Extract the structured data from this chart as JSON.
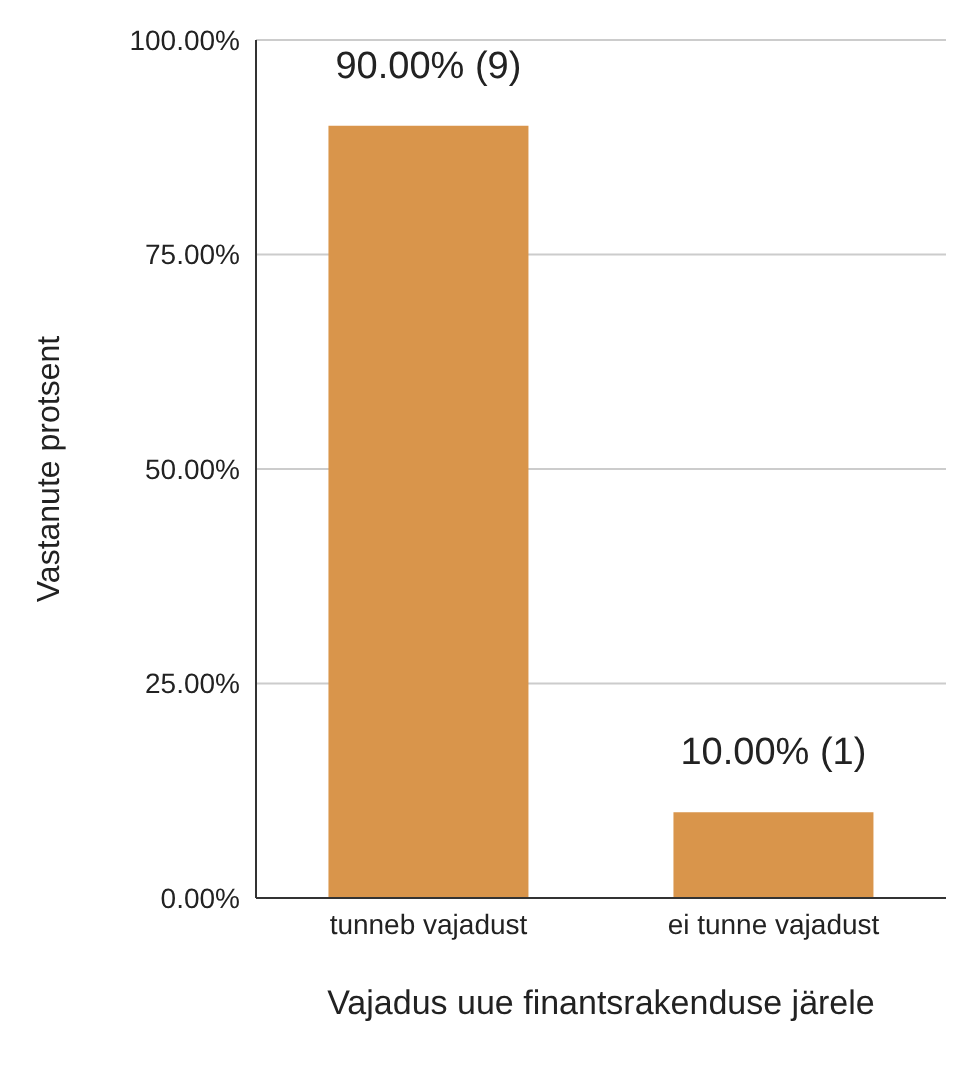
{
  "chart_data": {
    "type": "bar",
    "xlabel": "Vajadus uue finantsrakenduse järele",
    "ylabel": "Vastanute protsent",
    "categories": [
      "tunneb vajadust",
      "ei tunne vajadust"
    ],
    "values": [
      90,
      10
    ],
    "value_labels": [
      "90.00% (9)",
      "10.00% (1)"
    ],
    "color": "#d9954b",
    "ylim": [
      0,
      100
    ],
    "yticks": [
      {
        "value": 0,
        "label": "0.00%"
      },
      {
        "value": 25,
        "label": "25.00%"
      },
      {
        "value": 50,
        "label": "50.00%"
      },
      {
        "value": 75,
        "label": "75.00%"
      },
      {
        "value": 100,
        "label": "100.00%"
      }
    ],
    "grid": "y",
    "legend": false
  }
}
